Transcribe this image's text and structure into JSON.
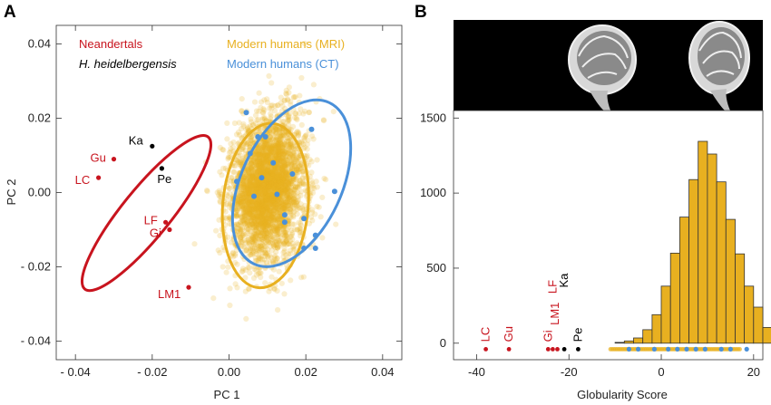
{
  "panels": {
    "a_letter": "A",
    "b_letter": "B"
  },
  "colors": {
    "neandertal": "#c8141e",
    "heidelbergensis": "#000000",
    "mri": "#e8b020",
    "ct": "#4a90d9",
    "hist_bar": "#e8b020",
    "hist_edge": "#333333"
  },
  "chart_data": [
    {
      "type": "scatter",
      "xlabel": "PC 1",
      "ylabel": "PC 2",
      "xlim": [
        -0.045,
        0.045
      ],
      "ylim": [
        -0.045,
        0.045
      ],
      "xticks": [
        -0.04,
        -0.02,
        0.0,
        0.02,
        0.04
      ],
      "xtick_labels": [
        "- 0.04",
        "- 0.02",
        "0.00",
        "0.02",
        "0.04"
      ],
      "yticks": [
        -0.04,
        -0.02,
        0.0,
        0.02,
        0.04
      ],
      "ytick_labels": [
        "- 0.04",
        "- 0.02",
        "0.00",
        "0.02",
        "0.04"
      ],
      "grid": false,
      "legend": [
        {
          "name": "Neandertals",
          "color": "#c8141e",
          "italic": false
        },
        {
          "name": "H. heidelbergensis",
          "color": "#000000",
          "italic": true
        },
        {
          "name": "Modern humans (MRI)",
          "color": "#e8b020",
          "italic": false
        },
        {
          "name": "Modern humans (CT)",
          "color": "#4a90d9",
          "italic": false
        }
      ],
      "legend_position": "top",
      "series": [
        {
          "name": "Neandertals",
          "color": "#c8141e",
          "points": [
            {
              "label": "Gu",
              "x": -0.03,
              "y": 0.009
            },
            {
              "label": "LC",
              "x": -0.034,
              "y": 0.004
            },
            {
              "label": "LF",
              "x": -0.0165,
              "y": -0.008
            },
            {
              "label": "Gi",
              "x": -0.0155,
              "y": -0.01
            },
            {
              "label": "LM1",
              "x": -0.0105,
              "y": -0.0255
            }
          ]
        },
        {
          "name": "H. heidelbergensis",
          "color": "#000000",
          "points": [
            {
              "label": "Ka",
              "x": -0.02,
              "y": 0.0125
            },
            {
              "label": "Pe",
              "x": -0.0175,
              "y": 0.0065
            }
          ]
        },
        {
          "name": "Modern humans (CT)",
          "color": "#4a90d9",
          "points": [
            {
              "x": 0.0045,
              "y": 0.0215
            },
            {
              "x": 0.0075,
              "y": 0.015
            },
            {
              "x": 0.0095,
              "y": 0.015
            },
            {
              "x": 0.0215,
              "y": 0.017
            },
            {
              "x": 0.0055,
              "y": 0.0105
            },
            {
              "x": 0.0115,
              "y": 0.008
            },
            {
              "x": 0.002,
              "y": 0.003
            },
            {
              "x": 0.0085,
              "y": 0.004
            },
            {
              "x": 0.0165,
              "y": 0.005
            },
            {
              "x": 0.0275,
              "y": 0.0003
            },
            {
              "x": 0.0065,
              "y": -0.001
            },
            {
              "x": 0.0125,
              "y": -0.0005
            },
            {
              "x": 0.0145,
              "y": -0.006
            },
            {
              "x": 0.0145,
              "y": -0.008
            },
            {
              "x": 0.0195,
              "y": -0.007
            },
            {
              "x": 0.0225,
              "y": -0.0115
            },
            {
              "x": 0.0195,
              "y": -0.015
            },
            {
              "x": 0.0225,
              "y": -0.015
            }
          ]
        }
      ],
      "mri_cloud": {
        "name": "Modern humans (MRI)",
        "color": "#e8b020",
        "count": 3500,
        "center": [
          0.01,
          0.001
        ],
        "sd_major": 0.0095,
        "sd_minor": 0.006,
        "tilt_deg": 80
      },
      "ellipses": [
        {
          "group": "Neandertals",
          "color": "#c8141e",
          "center": [
            -0.0215,
            -0.0055
          ],
          "rx": 0.0255,
          "ry": 0.0065,
          "angle_deg": -51
        },
        {
          "group": "Modern humans (MRI)",
          "color": "#e8b020",
          "center": [
            0.0095,
            -0.0035
          ],
          "rx": 0.0215,
          "ry": 0.0115,
          "angle_deg": 95
        },
        {
          "group": "Modern humans (CT)",
          "color": "#4a90d9",
          "center": [
            0.0163,
            0.0025
          ],
          "rx": 0.0232,
          "ry": 0.0135,
          "angle_deg": 115
        }
      ]
    },
    {
      "type": "bar",
      "xlabel": "Globularity Score",
      "ylabel": "",
      "xlim": [
        -45,
        22
      ],
      "ylim": [
        -110,
        1550
      ],
      "xticks": [
        -40,
        -20,
        0,
        20
      ],
      "xtick_labels": [
        "-40",
        "-20",
        "0",
        "20"
      ],
      "yticks": [
        0,
        500,
        1000,
        1500
      ],
      "ytick_labels": [
        "0",
        "500",
        "1000",
        "1500"
      ],
      "grid": false,
      "bin_width": 2,
      "bin_edges_start": -10,
      "values": [
        5,
        15,
        35,
        90,
        190,
        380,
        600,
        840,
        1090,
        1345,
        1260,
        1075,
        825,
        595,
        380,
        240,
        105,
        40,
        10,
        3
      ],
      "fossil_points": [
        {
          "label": "LC",
          "x": -38,
          "color": "#c8141e"
        },
        {
          "label": "Gu",
          "x": -33,
          "color": "#c8141e"
        },
        {
          "label": "Gi",
          "x": -24.5,
          "color": "#c8141e"
        },
        {
          "label": "",
          "x": -23.5,
          "color": "#c8141e"
        },
        {
          "label": "",
          "x": -22.5,
          "color": "#c8141e"
        },
        {
          "label": "",
          "x": -21,
          "color": "#000000"
        },
        {
          "label": "Pe",
          "x": -18,
          "color": "#000000"
        }
      ],
      "floating_labels": [
        {
          "label": "LF",
          "x": -23.5,
          "y": 330,
          "color": "#c8141e"
        },
        {
          "label": "Ka",
          "x": -21,
          "y": 370,
          "color": "#000000"
        },
        {
          "label": "LM1",
          "x": -23,
          "y": 120,
          "color": "#c8141e"
        }
      ],
      "ct_strip_x": [
        -7,
        -5,
        -1.5,
        1.5,
        3.5,
        5.5,
        7.5,
        9.5,
        13,
        15,
        18.5
      ],
      "mri_strip_range": [
        -11,
        17
      ]
    }
  ]
}
